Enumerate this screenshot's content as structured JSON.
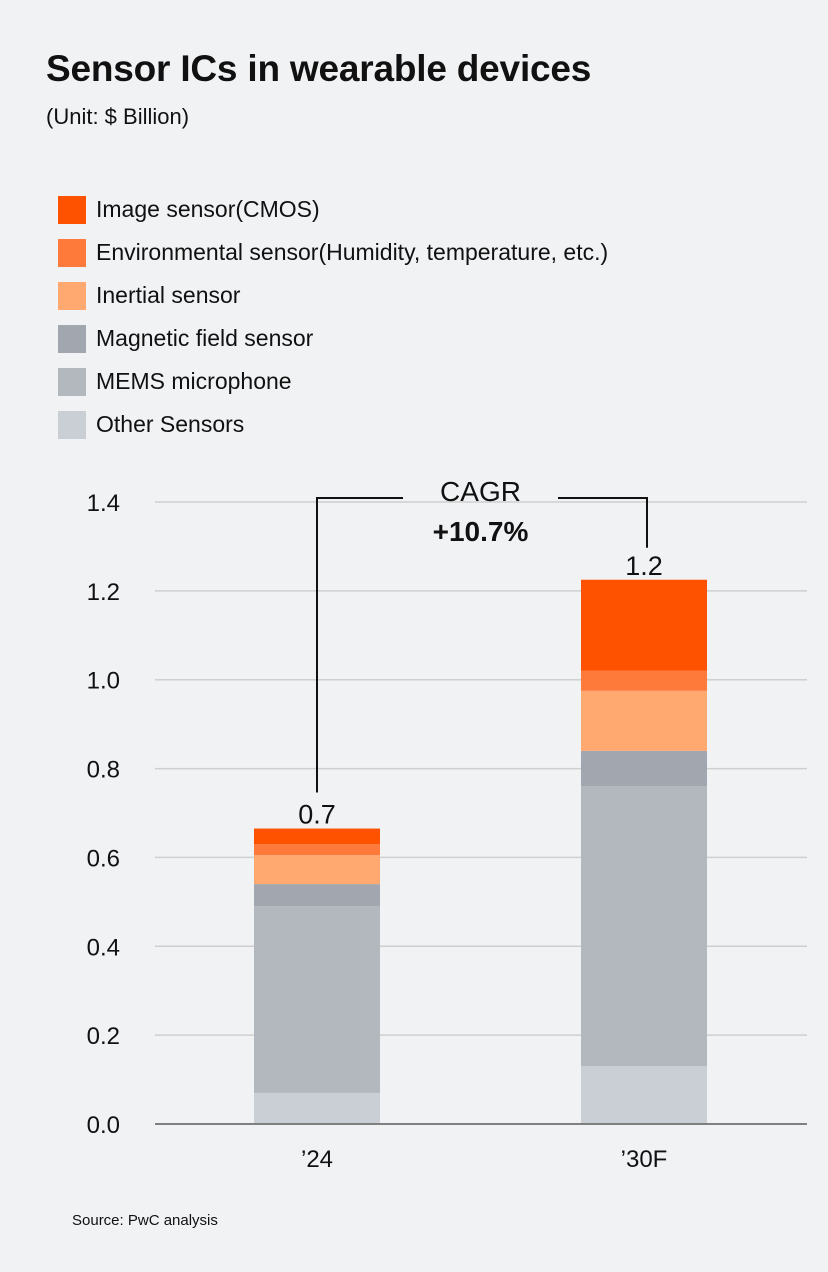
{
  "title": "Sensor ICs in wearable devices",
  "unit": "(Unit: $ Billion)",
  "source": "Source: PwC analysis",
  "legend": [
    {
      "label": "Image sensor(CMOS)",
      "color": "#fe5200"
    },
    {
      "label": "Environmental sensor(Humidity, temperature, etc.)",
      "color": "#fe7a3a"
    },
    {
      "label": "Inertial sensor",
      "color": "#ffa870"
    },
    {
      "label": "Magnetic field sensor",
      "color": "#a2a6af"
    },
    {
      "label": "MEMS microphone",
      "color": "#b3b8bf"
    },
    {
      "label": "Other Sensors",
      "color": "#cacfd6"
    }
  ],
  "chart_data": {
    "type": "bar",
    "stacked": true,
    "categories": [
      "’24",
      "’30F"
    ],
    "ylim": [
      0,
      1.4
    ],
    "yticks": [
      "0.0",
      "0.2",
      "0.4",
      "0.6",
      "0.8",
      "1.0",
      "1.2",
      "1.4"
    ],
    "series": [
      {
        "name": "Other Sensors",
        "color": "#cacfd6",
        "values": [
          0.07,
          0.13
        ]
      },
      {
        "name": "MEMS microphone",
        "color": "#b3b8bf",
        "values": [
          0.42,
          0.63
        ]
      },
      {
        "name": "Magnetic field sensor",
        "color": "#a2a6af",
        "values": [
          0.05,
          0.08
        ]
      },
      {
        "name": "Inertial sensor",
        "color": "#ffa870",
        "values": [
          0.065,
          0.135
        ]
      },
      {
        "name": "Environmental sensor(Humidity, temperature, etc.)",
        "color": "#fe7a3a",
        "values": [
          0.025,
          0.045
        ]
      },
      {
        "name": "Image sensor(CMOS)",
        "color": "#fe5200",
        "values": [
          0.035,
          0.205
        ]
      }
    ],
    "totals": [
      "0.7",
      "1.2"
    ],
    "annotation": {
      "label": "CAGR",
      "value": "+10.7%"
    }
  }
}
